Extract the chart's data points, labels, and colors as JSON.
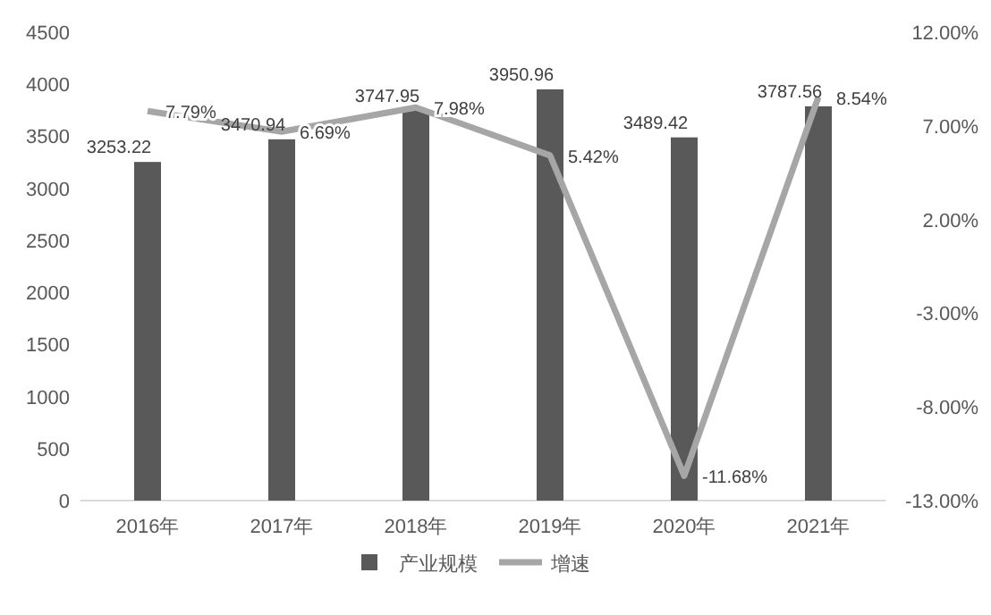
{
  "chart_data": {
    "type": "bar",
    "categories": [
      "2016年",
      "2017年",
      "2018年",
      "2019年",
      "2020年",
      "2021年"
    ],
    "series": [
      {
        "name": "产业规模",
        "color": "#595959",
        "values": [
          3253.22,
          3470.94,
          3747.95,
          3950.96,
          3489.42,
          3787.56
        ]
      },
      {
        "name": "增速",
        "type": "line",
        "axis": "y2",
        "color": "#a6a6a6",
        "values": [
          7.79,
          6.69,
          7.98,
          5.42,
          -11.68,
          8.54
        ],
        "value_labels": [
          "7.79%",
          "6.69%",
          "7.98%",
          "5.42%",
          "-11.68%",
          "8.54%"
        ]
      }
    ],
    "ylim": [
      0,
      4500
    ],
    "yticks": [
      0,
      500,
      1000,
      1500,
      2000,
      2500,
      3000,
      3500,
      4000,
      4500
    ],
    "y2lim": [
      -13,
      12
    ],
    "y2ticks": [
      {
        "value": -13,
        "label": "-13.00%"
      },
      {
        "value": -8,
        "label": "-8.00%"
      },
      {
        "value": -3,
        "label": "-3.00%"
      },
      {
        "value": 2,
        "label": "2.00%"
      },
      {
        "value": 7,
        "label": "7.00%"
      },
      {
        "value": 12,
        "label": "12.00%"
      }
    ],
    "data_labels": true,
    "legend": "bottom",
    "grid": false,
    "marker": "none",
    "line_style": "solid"
  }
}
